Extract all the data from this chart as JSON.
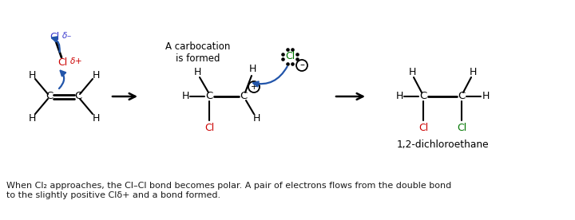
{
  "bg_color": "#ffffff",
  "text_color": "#1a1a1a",
  "red_color": "#cc0000",
  "green_color": "#007700",
  "blue_color": "#3333cc",
  "arrow_blue": "#2255aa",
  "footer_line1": "When Cl₂ approaches, the Cl–Cl bond becomes polar. A pair of electrons flows from the double bond",
  "footer_line2": "to the slightly positive Clδ+ and a bond formed.",
  "label_12dce": "1,2-dichloroethane",
  "label_carbocation": "A carbocation\nis formed"
}
